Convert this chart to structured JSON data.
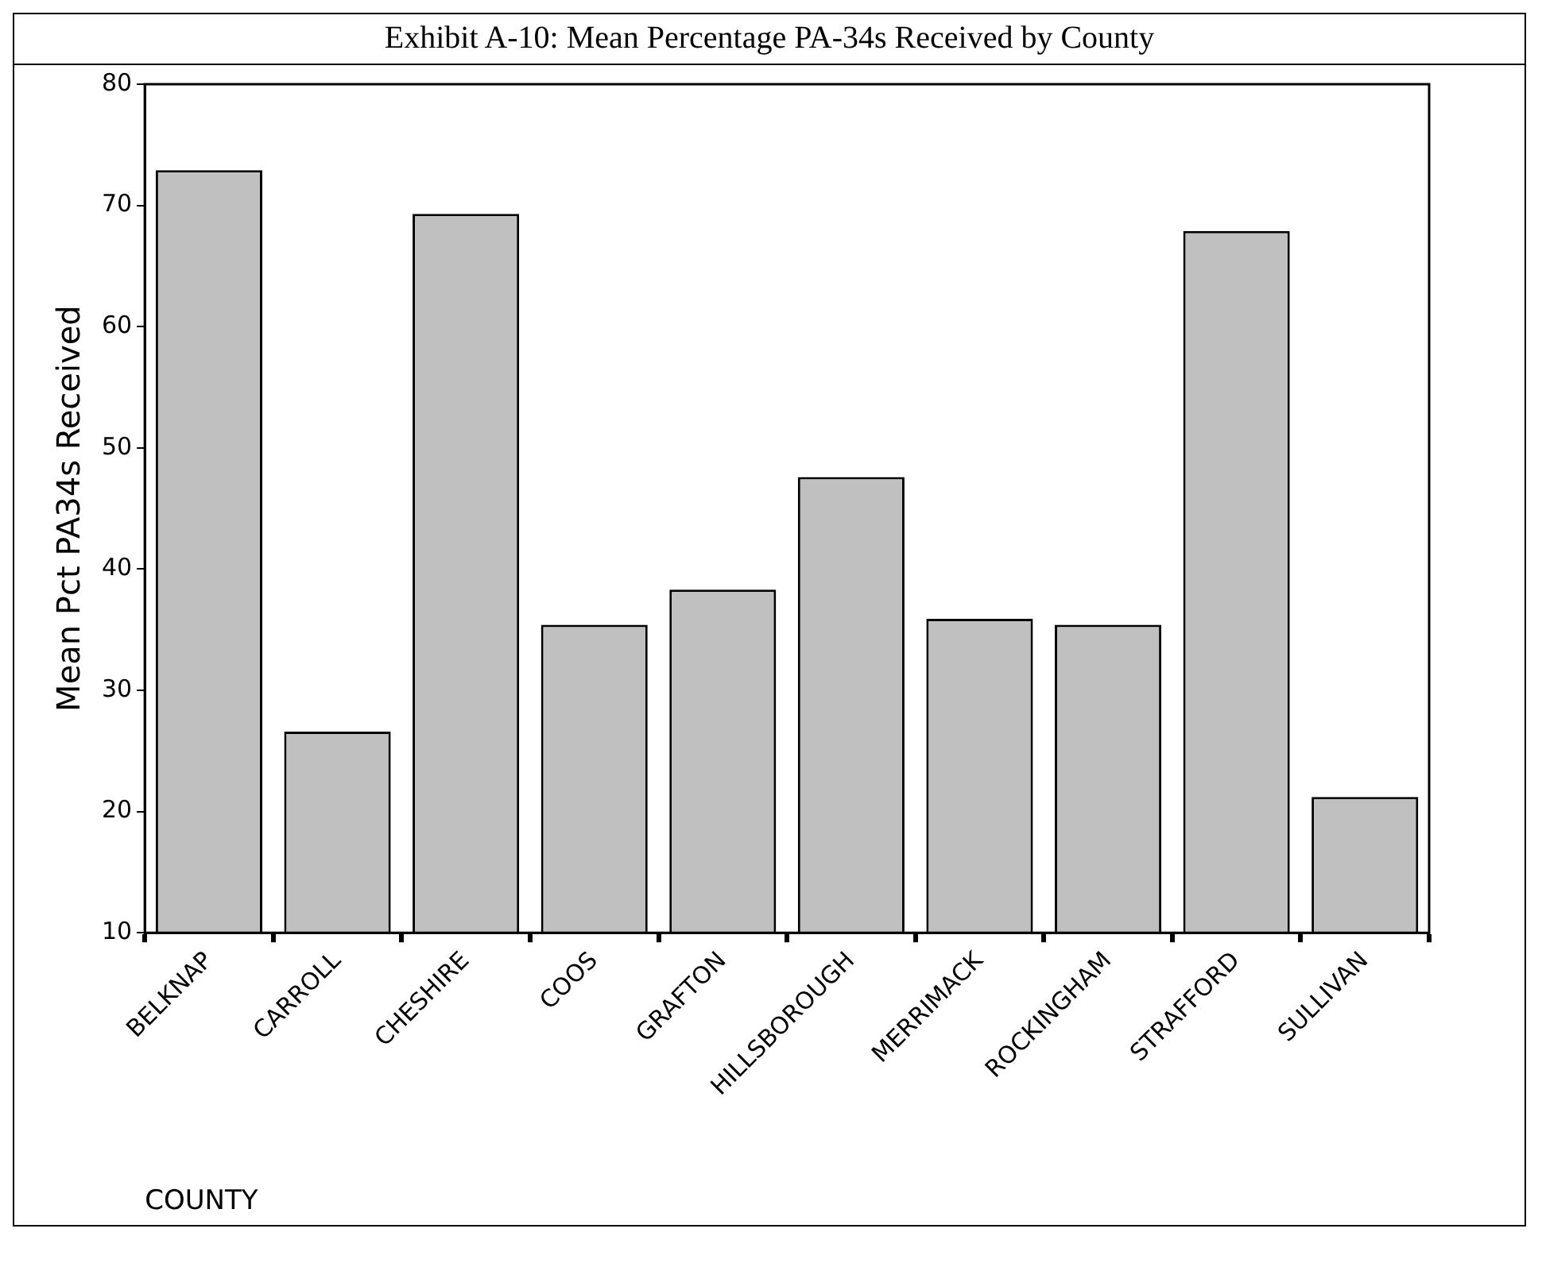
{
  "chart_data": {
    "type": "bar",
    "title": "Exhibit A-10:  Mean Percentage PA-34s Received by County",
    "xlabel": "COUNTY",
    "ylabel": "Mean Pct PA34s Received",
    "categories": [
      "BELKNAP",
      "CARROLL",
      "CHESHIRE",
      "COOS",
      "GRAFTON",
      "HILLSBOROUGH",
      "MERRIMACK",
      "ROCKINGHAM",
      "STRAFFORD",
      "SULLIVAN"
    ],
    "values": [
      72.9,
      26.6,
      69.3,
      35.4,
      38.3,
      47.6,
      35.9,
      35.4,
      67.9,
      21.2
    ],
    "color": "#c0c0c0",
    "ylim": [
      10,
      80
    ],
    "yticks": [
      10,
      20,
      30,
      40,
      50,
      60,
      70,
      80
    ],
    "grid": false
  }
}
